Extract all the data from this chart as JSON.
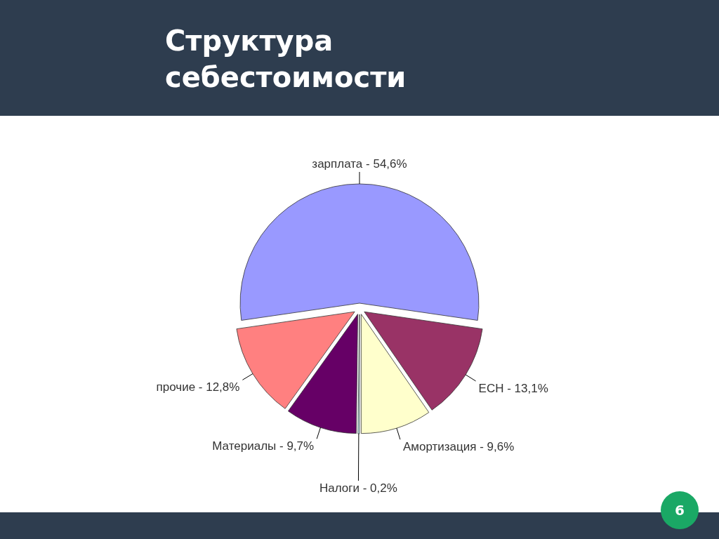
{
  "chart_data": {
    "type": "pie",
    "title": "Структура себестоимости",
    "categories": [
      "зарплата - 54,6%",
      "ЕСН - 13,1%",
      "Амортизация - 9,6%",
      "Налоги - 0,2%",
      "Материалы - 9,7%",
      "прочие - 12,8%"
    ],
    "values": [
      54.6,
      13.1,
      9.6,
      0.2,
      9.7,
      12.8
    ],
    "colors": [
      "#9999ff",
      "#993366",
      "#ffffcc",
      "#ccffff",
      "#660066",
      "#ff8080"
    ],
    "annotations": [
      "6"
    ]
  }
}
